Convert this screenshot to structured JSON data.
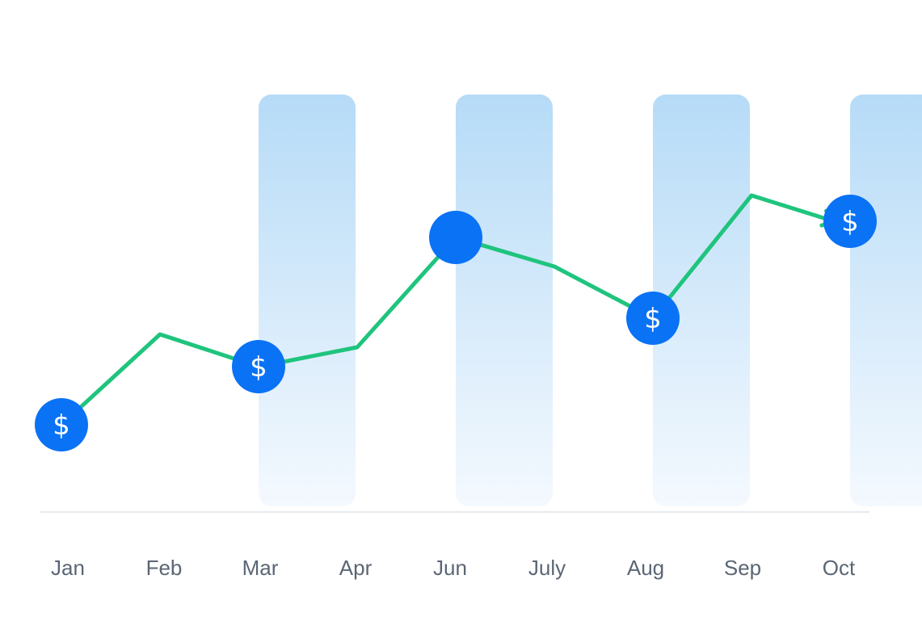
{
  "chart_data": {
    "type": "line",
    "title": "",
    "xlabel": "",
    "ylabel": "",
    "categories": [
      "Jan",
      "Feb",
      "Mar",
      "Apr",
      "Jun",
      "July",
      "Aug",
      "Sep",
      "Oct"
    ],
    "series": [
      {
        "values": [
          27,
          55,
          45,
          51,
          85,
          76,
          60,
          98,
          90
        ]
      }
    ],
    "marked_points": [
      {
        "category": "Jan",
        "marker": "dollar-coin"
      },
      {
        "category": "Mar",
        "marker": "dollar-coin"
      },
      {
        "category": "Jun",
        "marker": "dot"
      },
      {
        "category": "Aug",
        "marker": "dollar-coin"
      },
      {
        "category": "Oct",
        "marker": "dollar-coin"
      }
    ],
    "highlighted_categories": [
      "Feb",
      "Apr",
      "July",
      "Sep"
    ],
    "coin_symbol": "$",
    "ylim": [
      0,
      120
    ],
    "grid": false,
    "line_end": "arrow",
    "colors": {
      "line": "#1fc47d",
      "marker": "#0a72f5",
      "band_top": "#b6dbf7",
      "band_bottom": "#f4f9fe",
      "axis": "#e6e9ee",
      "tick_label": "#5b6675"
    }
  }
}
